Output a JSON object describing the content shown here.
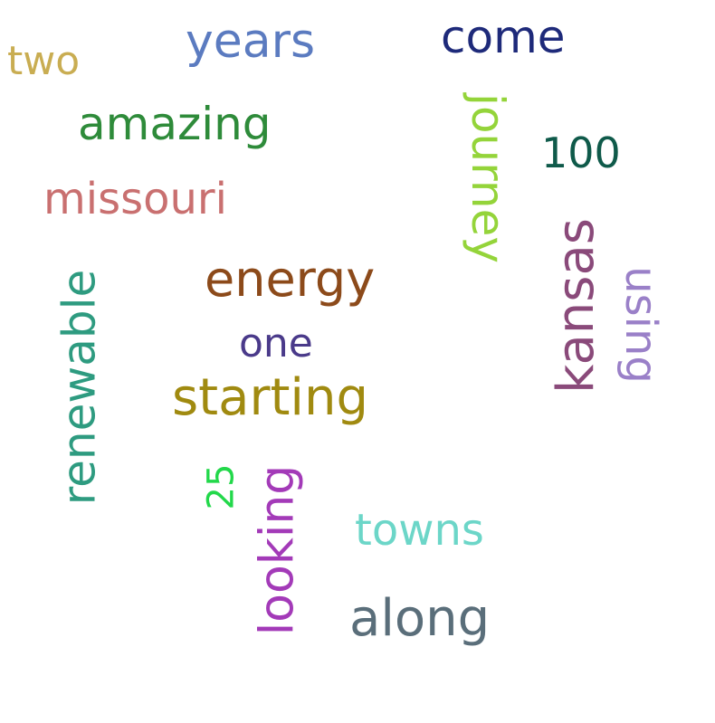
{
  "words": [
    {
      "id": "years",
      "text": "years",
      "color": "#5b7bc0"
    },
    {
      "id": "come",
      "text": "come",
      "color": "#1e2a7a"
    },
    {
      "id": "two",
      "text": "two",
      "color": "#c9ad52"
    },
    {
      "id": "amazing",
      "text": "amazing",
      "color": "#2e8b3a"
    },
    {
      "id": "100",
      "text": "100",
      "color": "#0f5a4a"
    },
    {
      "id": "journey",
      "text": "journey",
      "color": "#94d43a"
    },
    {
      "id": "missouri",
      "text": "missouri",
      "color": "#c97070"
    },
    {
      "id": "kansas",
      "text": "kansas",
      "color": "#8a4a7a"
    },
    {
      "id": "using",
      "text": "using",
      "color": "#9a80c8"
    },
    {
      "id": "renewable",
      "text": "renewable",
      "color": "#2e9b80"
    },
    {
      "id": "energy",
      "text": "energy",
      "color": "#8c4a1a"
    },
    {
      "id": "one",
      "text": "one",
      "color": "#4a3a8a"
    },
    {
      "id": "starting",
      "text": "starting",
      "color": "#a08a10"
    },
    {
      "id": "25",
      "text": "25",
      "color": "#22d84a"
    },
    {
      "id": "looking",
      "text": "looking",
      "color": "#a33ab8"
    },
    {
      "id": "towns",
      "text": "towns",
      "color": "#6cd6c8"
    },
    {
      "id": "along",
      "text": "along",
      "color": "#5a6e7a"
    }
  ]
}
